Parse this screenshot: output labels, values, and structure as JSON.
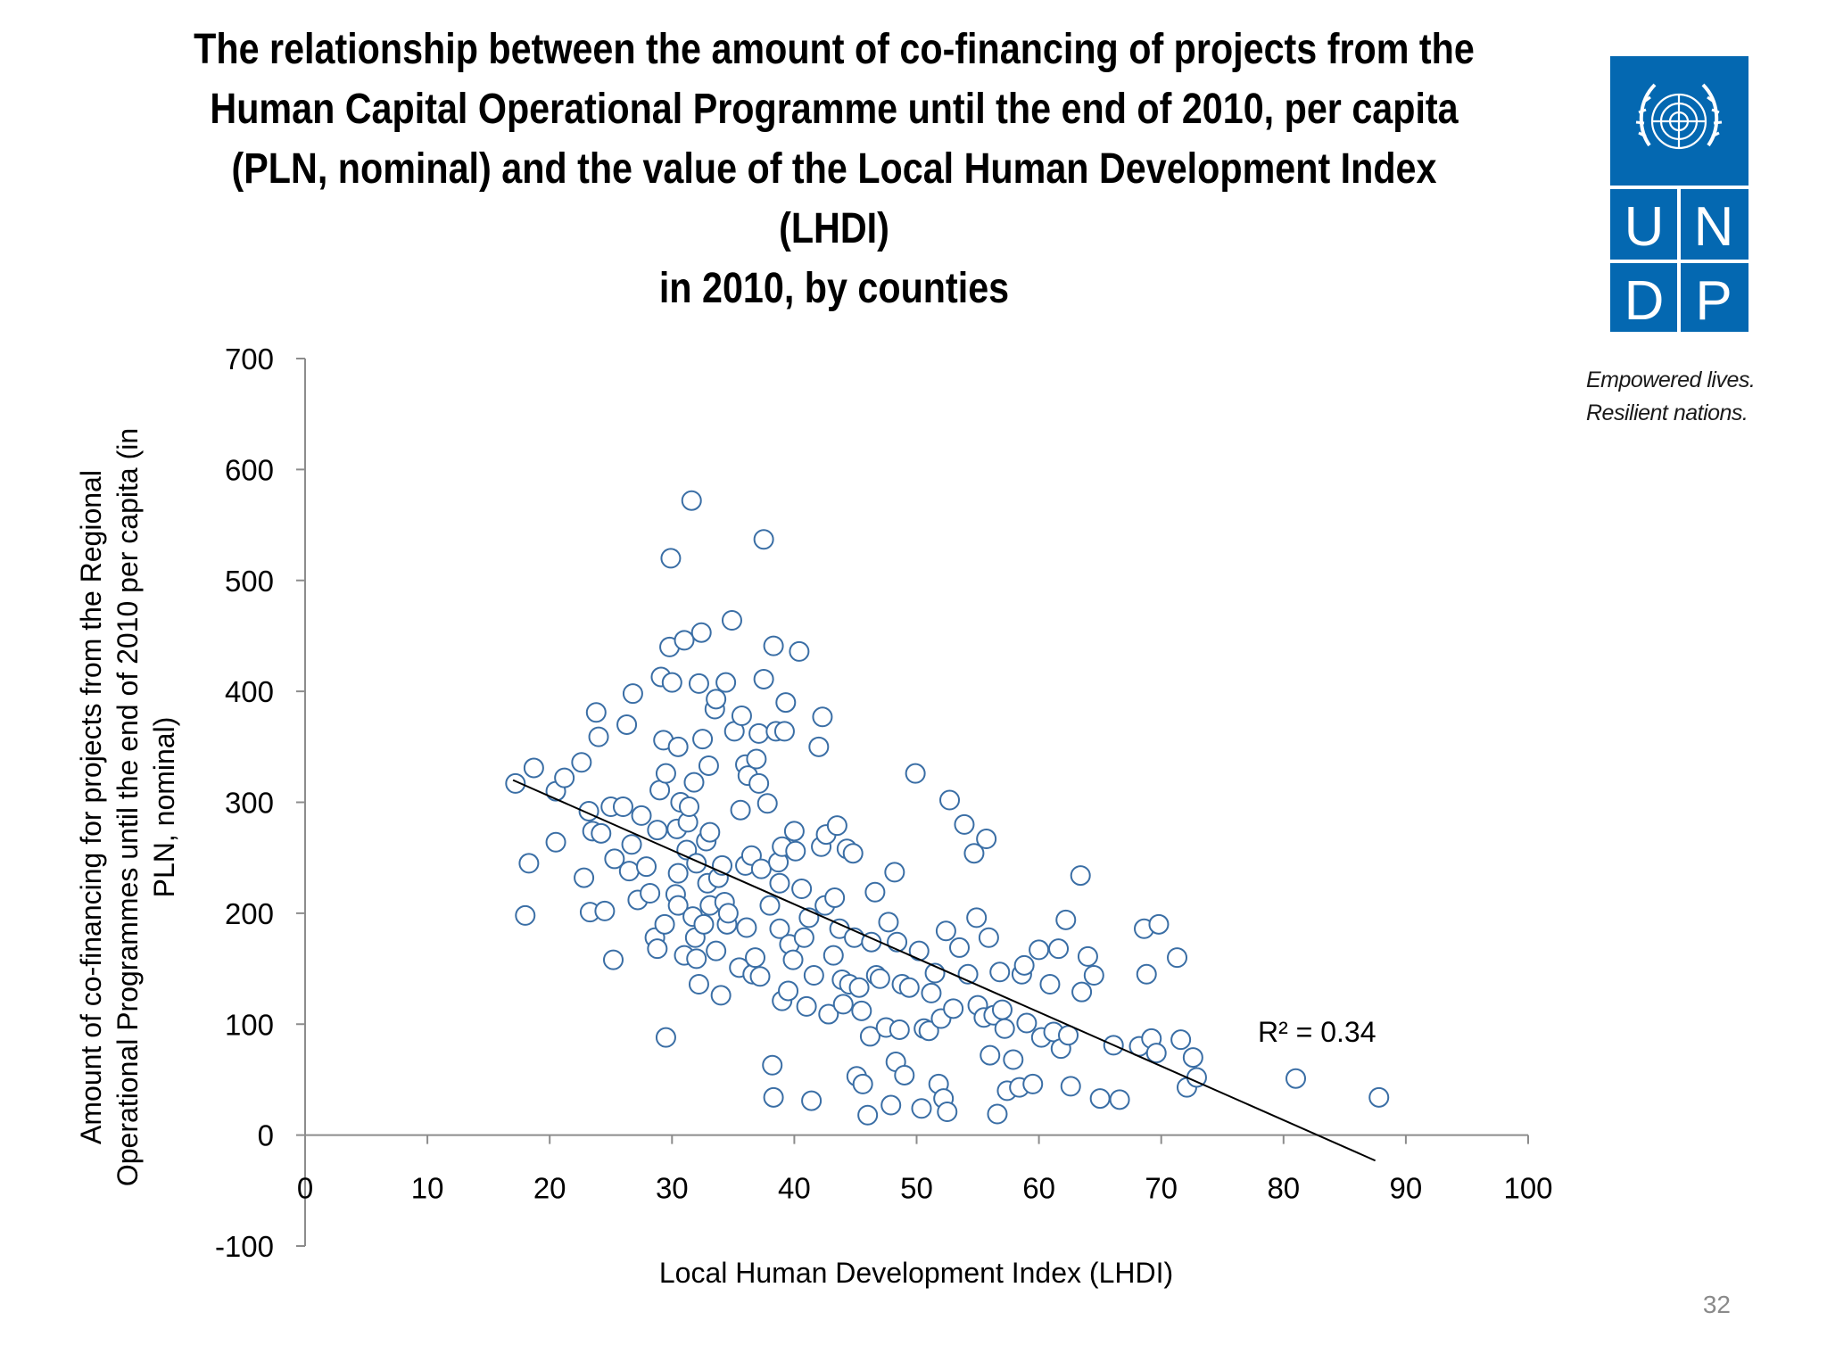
{
  "chart_data": {
    "type": "scatter",
    "title": "The relationship between the amount of co-financing of projects from the Human Capital Operational Programme until the end of 2010, per capita (PLN, nominal) and the value of the Local Human Development Index (LHDI) in 2010, by counties",
    "title_lines": [
      "The relationship between the amount of co-financing of projects from the",
      "Human Capital Operational Programme until the end of 2010, per capita",
      "(PLN, nominal) and the value of the Local Human Development Index (LHDI)",
      "in 2010, by counties"
    ],
    "xlabel": "Local Human Development Index (LHDI)",
    "ylabel_lines": [
      "Amount of co-financing for projects from the Regional",
      "Operational Programmes until the end of 2010 per capita (in",
      "PLN, nominal)"
    ],
    "xlim": [
      0,
      100
    ],
    "ylim": [
      -100,
      700
    ],
    "xticks": [
      "0",
      "10",
      "20",
      "30",
      "40",
      "50",
      "60",
      "70",
      "80",
      "90",
      "100"
    ],
    "yticks": [
      "700",
      "600",
      "500",
      "400",
      "300",
      "200",
      "100",
      "0",
      "-100"
    ],
    "grid": false,
    "legend": "none",
    "marker_color": "#3a6ea5",
    "trendline": {
      "type": "linear",
      "x": [
        17,
        87.5
      ],
      "y": [
        320,
        -23
      ],
      "color": "#000000"
    },
    "r2_label": "R² = 0.34",
    "series": [
      {
        "points": [
          [
            17.2,
            317
          ],
          [
            18,
            198
          ],
          [
            18.3,
            245
          ],
          [
            18.7,
            331
          ],
          [
            20.5,
            310
          ],
          [
            20.5,
            264
          ],
          [
            21.2,
            322
          ],
          [
            22.6,
            336
          ],
          [
            22.8,
            232
          ],
          [
            23.2,
            292
          ],
          [
            23.3,
            201
          ],
          [
            23.5,
            274
          ],
          [
            23.8,
            381
          ],
          [
            24,
            359
          ],
          [
            24.2,
            272
          ],
          [
            24.5,
            202
          ],
          [
            25,
            296
          ],
          [
            25.2,
            158
          ],
          [
            25.3,
            249
          ],
          [
            26,
            296
          ],
          [
            26.3,
            370
          ],
          [
            26.5,
            238
          ],
          [
            26.7,
            262
          ],
          [
            26.8,
            398
          ],
          [
            27.2,
            212
          ],
          [
            27.5,
            288
          ],
          [
            27.9,
            242
          ],
          [
            28.2,
            218
          ],
          [
            28.6,
            178
          ],
          [
            28.8,
            168
          ],
          [
            28.8,
            275
          ],
          [
            29,
            311
          ],
          [
            29.1,
            413
          ],
          [
            29.3,
            356
          ],
          [
            29.4,
            190
          ],
          [
            29.5,
            88
          ],
          [
            29.5,
            326
          ],
          [
            29.8,
            440
          ],
          [
            29.9,
            520
          ],
          [
            30,
            408
          ],
          [
            30.3,
            217
          ],
          [
            30.4,
            276
          ],
          [
            30.5,
            350
          ],
          [
            30.5,
            236
          ],
          [
            30.5,
            207
          ],
          [
            30.7,
            300
          ],
          [
            31,
            162
          ],
          [
            31,
            446
          ],
          [
            31.2,
            257
          ],
          [
            31.3,
            282
          ],
          [
            31.4,
            296
          ],
          [
            31.6,
            572
          ],
          [
            31.7,
            197
          ],
          [
            31.8,
            318
          ],
          [
            31.9,
            178
          ],
          [
            32,
            159
          ],
          [
            32,
            245
          ],
          [
            32.2,
            407
          ],
          [
            32.2,
            136
          ],
          [
            32.4,
            453
          ],
          [
            32.5,
            357
          ],
          [
            32.6,
            190
          ],
          [
            32.8,
            265
          ],
          [
            32.9,
            227
          ],
          [
            33,
            333
          ],
          [
            33.1,
            273
          ],
          [
            33.1,
            207
          ],
          [
            33.5,
            384
          ],
          [
            33.6,
            166
          ],
          [
            33.6,
            393
          ],
          [
            33.8,
            232
          ],
          [
            34,
            126
          ],
          [
            34.1,
            243
          ],
          [
            34.3,
            210
          ],
          [
            34.4,
            408
          ],
          [
            34.5,
            190
          ],
          [
            34.6,
            200
          ],
          [
            34.9,
            464
          ],
          [
            35.1,
            364
          ],
          [
            35.5,
            151
          ],
          [
            35.6,
            293
          ],
          [
            35.7,
            378
          ],
          [
            36,
            334
          ],
          [
            36,
            243
          ],
          [
            36.1,
            187
          ],
          [
            36.2,
            324
          ],
          [
            36.5,
            252
          ],
          [
            36.6,
            145
          ],
          [
            36.8,
            160
          ],
          [
            36.9,
            339
          ],
          [
            37.1,
            362
          ],
          [
            37.1,
            317
          ],
          [
            37.2,
            143
          ],
          [
            37.3,
            240
          ],
          [
            37.5,
            537
          ],
          [
            37.5,
            411
          ],
          [
            37.8,
            299
          ],
          [
            38,
            207
          ],
          [
            38.2,
            63
          ],
          [
            38.3,
            441
          ],
          [
            38.3,
            34
          ],
          [
            38.5,
            364
          ],
          [
            38.7,
            246
          ],
          [
            38.8,
            227
          ],
          [
            38.8,
            186
          ],
          [
            39,
            121
          ],
          [
            39,
            260
          ],
          [
            39.2,
            364
          ],
          [
            39.3,
            390
          ],
          [
            39.5,
            130
          ],
          [
            39.6,
            172
          ],
          [
            39.9,
            158
          ],
          [
            40,
            274
          ],
          [
            40.1,
            256
          ],
          [
            40.4,
            436
          ],
          [
            40.6,
            222
          ],
          [
            40.8,
            178
          ],
          [
            41,
            116
          ],
          [
            41.2,
            196
          ],
          [
            41.4,
            31
          ],
          [
            41.6,
            144
          ],
          [
            42,
            350
          ],
          [
            42.2,
            260
          ],
          [
            42.3,
            377
          ],
          [
            42.5,
            207
          ],
          [
            42.6,
            271
          ],
          [
            42.8,
            109
          ],
          [
            43.2,
            162
          ],
          [
            43.3,
            214
          ],
          [
            43.5,
            279
          ],
          [
            43.7,
            186
          ],
          [
            43.9,
            140
          ],
          [
            44,
            118
          ],
          [
            44.3,
            258
          ],
          [
            44.5,
            136
          ],
          [
            44.8,
            254
          ],
          [
            44.9,
            178
          ],
          [
            45.1,
            53
          ],
          [
            45.3,
            133
          ],
          [
            45.5,
            112
          ],
          [
            45.6,
            46
          ],
          [
            46,
            18
          ],
          [
            46.2,
            89
          ],
          [
            46.3,
            174
          ],
          [
            46.6,
            219
          ],
          [
            46.7,
            144
          ],
          [
            47,
            141
          ],
          [
            47.5,
            97
          ],
          [
            47.7,
            192
          ],
          [
            47.9,
            27
          ],
          [
            48.2,
            237
          ],
          [
            48.3,
            66
          ],
          [
            48.4,
            174
          ],
          [
            48.6,
            95
          ],
          [
            48.8,
            136
          ],
          [
            49,
            54
          ],
          [
            49.4,
            133
          ],
          [
            49.9,
            326
          ],
          [
            50.2,
            166
          ],
          [
            50.4,
            24
          ],
          [
            50.6,
            96
          ],
          [
            51,
            94
          ],
          [
            51.2,
            128
          ],
          [
            51.5,
            146
          ],
          [
            51.8,
            46
          ],
          [
            52,
            105
          ],
          [
            52.2,
            33
          ],
          [
            52.4,
            184
          ],
          [
            52.5,
            21
          ],
          [
            52.7,
            302
          ],
          [
            53,
            114
          ],
          [
            53.5,
            169
          ],
          [
            53.9,
            280
          ],
          [
            54.2,
            145
          ],
          [
            54.7,
            254
          ],
          [
            54.9,
            196
          ],
          [
            55,
            117
          ],
          [
            55.5,
            106
          ],
          [
            55.7,
            267
          ],
          [
            55.9,
            178
          ],
          [
            56,
            72
          ],
          [
            56.3,
            108
          ],
          [
            56.6,
            19
          ],
          [
            56.8,
            147
          ],
          [
            57,
            113
          ],
          [
            57.2,
            96
          ],
          [
            57.4,
            40
          ],
          [
            57.9,
            68
          ],
          [
            58.4,
            43
          ],
          [
            58.6,
            145
          ],
          [
            58.8,
            153
          ],
          [
            59,
            101
          ],
          [
            59.5,
            46
          ],
          [
            60,
            167
          ],
          [
            60.2,
            88
          ],
          [
            60.9,
            136
          ],
          [
            61.2,
            93
          ],
          [
            61.6,
            168
          ],
          [
            61.8,
            78
          ],
          [
            62.2,
            194
          ],
          [
            62.4,
            90
          ],
          [
            62.6,
            44
          ],
          [
            63.4,
            234
          ],
          [
            63.5,
            129
          ],
          [
            64,
            161
          ],
          [
            64.5,
            144
          ],
          [
            65,
            33
          ],
          [
            66.1,
            81
          ],
          [
            66.6,
            32
          ],
          [
            68.2,
            80
          ],
          [
            68.6,
            186
          ],
          [
            68.8,
            145
          ],
          [
            69.2,
            87
          ],
          [
            69.6,
            74
          ],
          [
            69.8,
            190
          ],
          [
            71.3,
            160
          ],
          [
            71.6,
            86
          ],
          [
            72.1,
            43
          ],
          [
            72.6,
            70
          ],
          [
            72.9,
            52
          ],
          [
            81,
            51
          ],
          [
            87.8,
            34
          ]
        ]
      }
    ]
  },
  "logo": {
    "top": "U N",
    "bottom": "D P",
    "letters": [
      "U",
      "N",
      "D",
      "P"
    ],
    "color": "#0468b1"
  },
  "tagline": {
    "line1": "Empowered lives.",
    "line2": "Resilient nations."
  },
  "page_number": "32"
}
